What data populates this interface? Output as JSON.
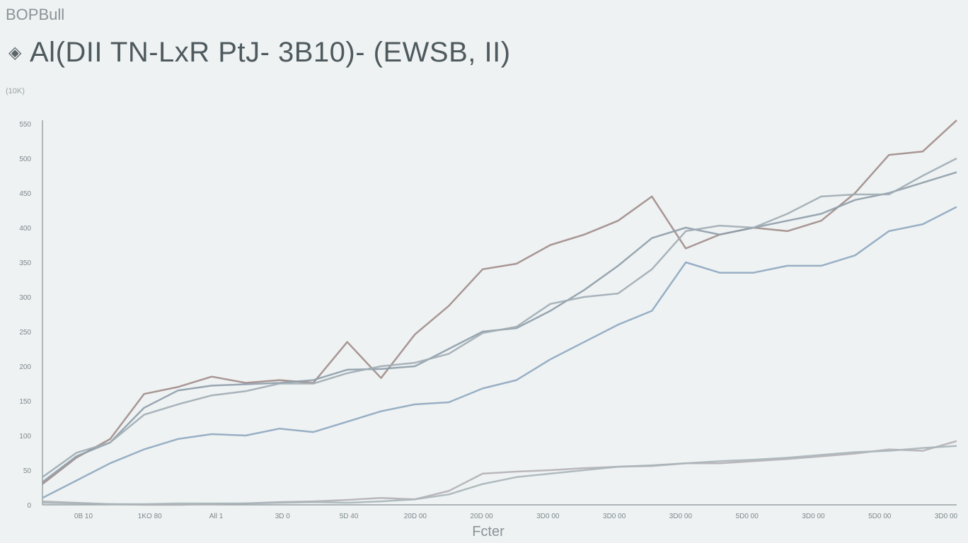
{
  "header": {
    "app_name": "BOPBull",
    "title": "Al(DII TN-LxR PtJ- 3B10)- (EWSB, II)",
    "title_icon": "diamond-icon"
  },
  "chart_data": {
    "type": "line",
    "title": "Al(DII TN-LxR PtJ- 3B10)- (EWSB, II)",
    "ylabel": "(10K)",
    "xlabel": "Fcter",
    "ylim": [
      0,
      550
    ],
    "grid": false,
    "x_ticks": [
      "0B 10",
      "1KO 80",
      "All 1",
      "3D 0",
      "5D 40",
      "20D 00",
      "20D 00",
      "3D0 00",
      "3D0 00",
      "3D0 00",
      "5D0 00",
      "3D0 00",
      "5D0 00",
      "3D0 00"
    ],
    "y_ticks": [
      "0",
      "50",
      "100",
      "150",
      "200",
      "250",
      "300",
      "350",
      "400",
      "450",
      "500",
      "550"
    ],
    "series": [
      {
        "color": "#a08c8a",
        "values": [
          30,
          68,
          95,
          160,
          170,
          185,
          176,
          180,
          176,
          235,
          183,
          246,
          287,
          340,
          348,
          375,
          390,
          410,
          445,
          370,
          390,
          400,
          395,
          410,
          450,
          505,
          510,
          555
        ]
      },
      {
        "color": "#8e9daa",
        "values": [
          33,
          70,
          90,
          140,
          165,
          172,
          174,
          176,
          180,
          195,
          196,
          200,
          225,
          250,
          255,
          280,
          310,
          345,
          385,
          400,
          390,
          400,
          410,
          420,
          440,
          450,
          465,
          480
        ]
      },
      {
        "color": "#a0acb4",
        "values": [
          40,
          75,
          90,
          130,
          145,
          158,
          164,
          175,
          175,
          190,
          200,
          205,
          218,
          248,
          257,
          290,
          300,
          305,
          340,
          395,
          403,
          400,
          420,
          445,
          448,
          448,
          475,
          500
        ]
      },
      {
        "color": "#8ea7bf",
        "values": [
          10,
          35,
          60,
          80,
          95,
          102,
          100,
          110,
          105,
          120,
          135,
          145,
          148,
          168,
          180,
          210,
          235,
          260,
          280,
          350,
          335,
          335,
          345,
          345,
          360,
          395,
          405,
          430
        ]
      },
      {
        "color": "#b4b0b6",
        "values": [
          5,
          3,
          1,
          0,
          0,
          1,
          2,
          4,
          5,
          7,
          10,
          8,
          20,
          45,
          48,
          50,
          53,
          55,
          56,
          60,
          60,
          63,
          66,
          70,
          74,
          80,
          78,
          92
        ]
      },
      {
        "color": "#a9b5b9",
        "values": [
          3,
          2,
          1,
          1,
          2,
          2,
          2,
          3,
          4,
          3,
          5,
          8,
          15,
          30,
          40,
          45,
          50,
          55,
          57,
          60,
          63,
          65,
          68,
          72,
          76,
          78,
          82,
          85
        ]
      }
    ]
  }
}
